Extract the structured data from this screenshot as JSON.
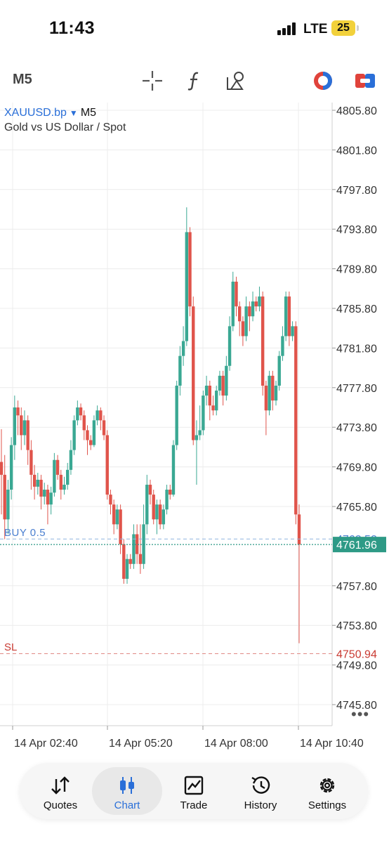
{
  "status": {
    "time": "11:43",
    "network": "LTE",
    "battery": "25"
  },
  "toolbar": {
    "timeframe": "M5",
    "icons": [
      "crosshair-icon",
      "indicators-icon",
      "objects-icon",
      "account-icon",
      "trade-toggle-icon"
    ]
  },
  "chart": {
    "symbol": "XAUUSD.bp",
    "timeframe": "M5",
    "description": "Gold vs US Dollar / Spot",
    "price_labels": [
      "4805.80",
      "4801.80",
      "4797.80",
      "4793.80",
      "4789.80",
      "4785.80",
      "4781.80",
      "4777.80",
      "4773.80",
      "4769.80",
      "4765.80",
      "4762.52",
      "4761.96",
      "4757.80",
      "4753.80",
      "4750.94",
      "4749.80",
      "4745.80"
    ],
    "time_labels": [
      "14 Apr 02:40",
      "14 Apr 05:20",
      "14 Apr 08:00",
      "14 Apr 10:40"
    ],
    "buy_label": "BUY 0.5",
    "buy_price": "4762.52",
    "current_price": "4761.96",
    "sl_label": "SL",
    "sl_price": "4750.94",
    "more": "•••",
    "colors": {
      "bull": "#3aa893",
      "bear": "#e0544b",
      "buy_line": "#8fb4e0",
      "bid_line": "#2e9a86",
      "sl_line": "#e08a84",
      "grid": "#ececec"
    }
  },
  "chart_data": {
    "type": "candlestick",
    "ylim": [
      4742,
      4807
    ],
    "candles": [
      [
        4770.3,
        4769.0,
        4773.6,
        4765.0
      ],
      [
        4769.0,
        4764.5,
        4771.0,
        4762.5
      ],
      [
        4764.5,
        4767.5,
        4768.5,
        4763.0
      ],
      [
        4767.5,
        4772.0,
        4772.8,
        4766.5
      ],
      [
        4772.0,
        4775.8,
        4777.0,
        4770.5
      ],
      [
        4775.8,
        4775.0,
        4776.5,
        4773.0
      ],
      [
        4775.0,
        4773.0,
        4775.8,
        4771.5
      ],
      [
        4773.0,
        4774.5,
        4775.5,
        4772.0
      ],
      [
        4774.5,
        4771.5,
        4775.0,
        4770.0
      ],
      [
        4771.5,
        4769.0,
        4772.5,
        4767.5
      ],
      [
        4769.0,
        4767.8,
        4770.0,
        4766.5
      ],
      [
        4767.8,
        4768.5,
        4769.2,
        4767.0
      ],
      [
        4768.5,
        4766.8,
        4769.0,
        4765.5
      ],
      [
        4766.8,
        4767.5,
        4768.2,
        4766.0
      ],
      [
        4767.5,
        4766.0,
        4768.0,
        4764.0
      ],
      [
        4766.0,
        4767.2,
        4767.8,
        4765.0
      ],
      [
        4767.2,
        4770.5,
        4771.2,
        4766.8
      ],
      [
        4770.5,
        4769.0,
        4771.0,
        4768.5
      ],
      [
        4769.0,
        4767.5,
        4769.5,
        4766.5
      ],
      [
        4767.5,
        4768.0,
        4768.8,
        4767.0
      ],
      [
        4768.0,
        4769.5,
        4770.2,
        4767.5
      ],
      [
        4769.5,
        4771.5,
        4772.5,
        4769.0
      ],
      [
        4771.5,
        4774.5,
        4775.0,
        4771.0
      ],
      [
        4774.5,
        4775.8,
        4776.5,
        4774.0
      ],
      [
        4775.8,
        4775.0,
        4776.2,
        4774.5
      ],
      [
        4775.0,
        4773.5,
        4775.5,
        4772.5
      ],
      [
        4773.5,
        4772.5,
        4774.0,
        4771.0
      ],
      [
        4772.5,
        4772.0,
        4773.0,
        4771.5
      ],
      [
        4772.0,
        4774.5,
        4775.0,
        4771.8
      ],
      [
        4774.5,
        4775.5,
        4776.0,
        4774.0
      ],
      [
        4775.5,
        4774.5,
        4775.8,
        4773.5
      ],
      [
        4774.5,
        4773.0,
        4775.0,
        4772.5
      ],
      [
        4773.0,
        4767.0,
        4773.5,
        4766.5
      ],
      [
        4767.0,
        4766.0,
        4767.5,
        4765.0
      ],
      [
        4766.0,
        4764.0,
        4766.5,
        4763.0
      ],
      [
        4764.0,
        4765.5,
        4766.0,
        4763.5
      ],
      [
        4765.5,
        4762.0,
        4766.0,
        4761.0
      ],
      [
        4762.0,
        4758.5,
        4762.5,
        4758.0
      ],
      [
        4758.5,
        4760.5,
        4761.0,
        4758.0
      ],
      [
        4760.5,
        4760.0,
        4761.0,
        4759.5
      ],
      [
        4760.0,
        4763.0,
        4764.0,
        4759.5
      ],
      [
        4763.0,
        4761.0,
        4764.0,
        4760.0
      ],
      [
        4761.0,
        4760.0,
        4764.0,
        4759.0
      ],
      [
        4760.0,
        4764.0,
        4766.0,
        4759.5
      ],
      [
        4764.0,
        4768.0,
        4769.0,
        4763.0
      ],
      [
        4768.0,
        4767.0,
        4768.5,
        4766.0
      ],
      [
        4767.0,
        4764.5,
        4767.5,
        4764.0
      ],
      [
        4764.5,
        4766.0,
        4766.5,
        4763.0
      ],
      [
        4766.0,
        4764.0,
        4766.5,
        4763.5
      ],
      [
        4764.0,
        4765.5,
        4766.0,
        4763.5
      ],
      [
        4765.5,
        4767.5,
        4768.0,
        4765.0
      ],
      [
        4767.5,
        4767.0,
        4768.0,
        4766.5
      ],
      [
        4767.0,
        4772.0,
        4772.5,
        4766.8
      ],
      [
        4772.0,
        4778.0,
        4778.5,
        4771.5
      ],
      [
        4778.0,
        4781.0,
        4782.0,
        4777.0
      ],
      [
        4781.0,
        4782.5,
        4784.0,
        4780.0
      ],
      [
        4782.5,
        4793.5,
        4796.0,
        4782.0
      ],
      [
        4793.5,
        4786.0,
        4794.0,
        4785.0
      ],
      [
        4786.0,
        4772.5,
        4787.0,
        4772.0
      ],
      [
        4772.5,
        4773.0,
        4774.5,
        4768.0
      ],
      [
        4773.0,
        4773.5,
        4776.0,
        4772.5
      ],
      [
        4773.5,
        4777.0,
        4777.5,
        4773.0
      ],
      [
        4777.0,
        4778.0,
        4779.0,
        4776.0
      ],
      [
        4778.0,
        4776.0,
        4778.5,
        4774.5
      ],
      [
        4776.0,
        4775.5,
        4777.0,
        4775.0
      ],
      [
        4775.5,
        4777.5,
        4778.0,
        4775.0
      ],
      [
        4777.5,
        4779.0,
        4779.5,
        4777.0
      ],
      [
        4779.0,
        4777.0,
        4779.5,
        4776.0
      ],
      [
        4777.0,
        4780.0,
        4781.0,
        4776.5
      ],
      [
        4780.0,
        4784.0,
        4785.0,
        4779.5
      ],
      [
        4784.0,
        4788.5,
        4789.5,
        4783.5
      ],
      [
        4788.5,
        4786.0,
        4789.0,
        4785.0
      ],
      [
        4786.0,
        4784.5,
        4786.5,
        4783.0
      ],
      [
        4784.5,
        4783.0,
        4785.0,
        4782.0
      ],
      [
        4783.0,
        4786.0,
        4787.0,
        4782.5
      ],
      [
        4786.0,
        4785.0,
        4786.5,
        4783.5
      ],
      [
        4785.0,
        4786.5,
        4787.5,
        4784.5
      ],
      [
        4786.5,
        4786.0,
        4787.0,
        4785.5
      ],
      [
        4786.0,
        4787.0,
        4788.0,
        4785.5
      ],
      [
        4787.0,
        4778.0,
        4787.5,
        4777.0
      ],
      [
        4778.0,
        4775.5,
        4778.5,
        4773.0
      ],
      [
        4775.5,
        4779.0,
        4779.5,
        4775.0
      ],
      [
        4779.0,
        4776.5,
        4779.5,
        4775.5
      ],
      [
        4776.5,
        4778.0,
        4778.5,
        4776.0
      ],
      [
        4778.0,
        4781.0,
        4781.5,
        4777.5
      ],
      [
        4781.0,
        4783.0,
        4784.0,
        4780.5
      ],
      [
        4783.0,
        4787.0,
        4787.5,
        4782.5
      ],
      [
        4787.0,
        4783.0,
        4787.5,
        4782.0
      ],
      [
        4783.0,
        4784.0,
        4784.5,
        4782.5
      ],
      [
        4784.0,
        4765.0,
        4784.5,
        4764.0
      ],
      [
        4765.0,
        4761.96,
        4766.0,
        4752.0
      ]
    ]
  }
}
